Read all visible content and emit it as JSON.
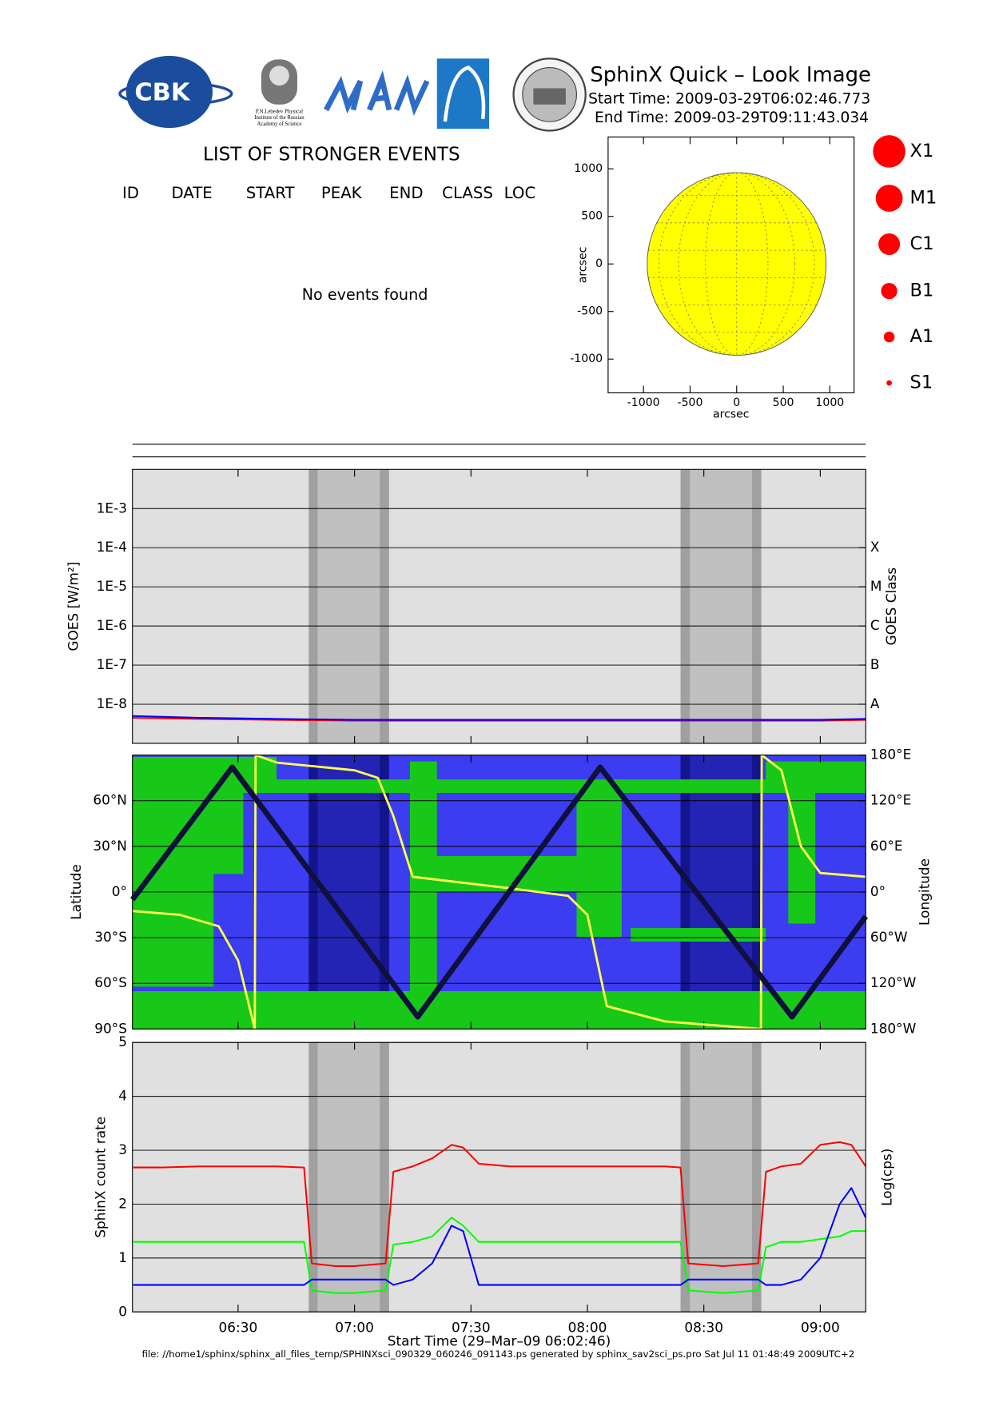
{
  "header": {
    "title": "SphinX Quick – Look Image",
    "start_time": "Start Time: 2009-03-29T06:02:46.773",
    "end_time": "End Time: 2009-03-29T09:11:43.034"
  },
  "logos": {
    "cbk": "CBK",
    "lebedev": [
      "P.N.Lebedev Physical",
      "Institute of the Russian",
      "Academy of Science"
    ]
  },
  "events": {
    "title": "LIST OF STRONGER EVENTS",
    "columns": [
      "ID",
      "DATE",
      "START",
      "PEAK",
      "END",
      "CLASS",
      "LOC"
    ],
    "message": "No events found"
  },
  "flare_classes": [
    "X1",
    "M1",
    "C1",
    "B1",
    "A1",
    "S1"
  ],
  "footer": "file: //home1/sphinx/sphinx_all_files_temp/SPHINXsci_090329_060246_091143.ps generated by sphinx_sav2sci_ps.pro Sat Jul 11 01:48:49 2009UTC+2",
  "chart_data": [
    {
      "type": "disk",
      "xlabel": "arcsec",
      "ylabel": "arcsec",
      "xlim": [
        -1380,
        1260
      ],
      "ylim": [
        -1355,
        1335
      ],
      "xticks": [
        -1000,
        -500,
        0,
        500,
        1000
      ],
      "yticks": [
        -1000,
        -500,
        0,
        500,
        1000
      ],
      "radius": 960,
      "color": "#ffff00",
      "background": "#ffffff"
    },
    {
      "type": "line",
      "ylabel": "GOES [W/m²]",
      "y2label": "GOES Class",
      "log_y": true,
      "grid": true,
      "background": "#e0e0e0",
      "penumbra_color": "#a0a0a0",
      "umbra_color": "#c0c0c0",
      "xlim": [
        362.78,
        551.72
      ],
      "ylim": [
        1e-09,
        0.01
      ],
      "xticks": [
        390,
        420,
        450,
        480,
        510,
        540
      ],
      "yticks": [
        {
          "value": 0.001,
          "label": "1E-3"
        },
        {
          "value": 0.0001,
          "label": "1E-4"
        },
        {
          "value": 1e-05,
          "label": "1E-5"
        },
        {
          "value": 1e-06,
          "label": "1E-6"
        },
        {
          "value": 1e-07,
          "label": "1E-7"
        },
        {
          "value": 1e-08,
          "label": "1E-8"
        }
      ],
      "y2ticks": [
        {
          "value": 0.0001,
          "label": "X"
        },
        {
          "value": 1e-05,
          "label": "M"
        },
        {
          "value": 1e-06,
          "label": "C"
        },
        {
          "value": 1e-07,
          "label": "B"
        },
        {
          "value": 1e-08,
          "label": "A"
        }
      ],
      "shading": [
        {
          "penumbra": [
            408.2,
            428.9
          ],
          "umbra": [
            410.5,
            426.5
          ]
        },
        {
          "penumbra": [
            504.0,
            524.8
          ],
          "umbra": [
            506.4,
            522.4
          ]
        }
      ],
      "x": [
        362.78,
        380,
        400,
        420,
        450,
        480,
        510,
        540,
        551.72
      ],
      "series": [
        {
          "color": "#ff0000",
          "values": [
            4.5e-09,
            4.2e-09,
            4e-09,
            3.8e-09,
            3.8e-09,
            3.8e-09,
            3.8e-09,
            3.8e-09,
            4e-09
          ]
        },
        {
          "color": "#0000ff",
          "values": [
            5e-09,
            4.5e-09,
            4.2e-09,
            4e-09,
            4e-09,
            4e-09,
            4e-09,
            4e-09,
            4.2e-09
          ]
        }
      ]
    },
    {
      "type": "track",
      "ylabel": "Latitude",
      "y2label": "Longitude",
      "grid": true,
      "background": "#3c3cf0",
      "penumbra_color": "#14148c",
      "umbra_color": "#2424b4",
      "xlim": [
        362.78,
        551.72
      ],
      "ylim": [
        -90,
        90
      ],
      "y2lim": [
        -180,
        180
      ],
      "xticks": [
        390,
        420,
        450,
        480,
        510,
        540
      ],
      "yticks": [
        {
          "value": 60,
          "label": "60°N"
        },
        {
          "value": 30,
          "label": "30°N"
        },
        {
          "value": 0,
          "label": "0°"
        },
        {
          "value": -30,
          "label": "30°S"
        },
        {
          "value": -60,
          "label": "60°S"
        },
        {
          "value": -90,
          "label": "90°S"
        }
      ],
      "y2ticks": [
        {
          "value": 180,
          "label": "180°E"
        },
        {
          "value": 120,
          "label": "120°E"
        },
        {
          "value": 60,
          "label": "60°E"
        },
        {
          "value": 0,
          "label": "0°"
        },
        {
          "value": -60,
          "label": "60°W"
        },
        {
          "value": -120,
          "label": "120°W"
        },
        {
          "value": -180,
          "label": "180°W"
        }
      ],
      "shading": [
        {
          "penumbra": [
            408.2,
            428.9
          ],
          "umbra": [
            410.5,
            426.5
          ]
        },
        {
          "penumbra": [
            504.0,
            524.8
          ],
          "umbra": [
            506.4,
            522.4
          ]
        }
      ],
      "series": [
        {
          "color": "#ffff50",
          "axis": "y2",
          "x": [
            362.78,
            375,
            385,
            390,
            394.3,
            394.5,
            400,
            420,
            426,
            430,
            435,
            460,
            475,
            480,
            485,
            500,
            524.7,
            524.9,
            530,
            535,
            540,
            551.72
          ],
          "values": [
            -25,
            -30,
            -45,
            -90,
            -180,
            180,
            170,
            160,
            150,
            100,
            20,
            5,
            -5,
            -30,
            -150,
            -170,
            -180,
            180,
            160,
            60,
            25,
            20
          ]
        },
        {
          "color": "#10103c",
          "x": [
            362.78,
            388.5,
            436.3,
            483.3,
            532.7,
            551.72
          ],
          "values": [
            -5,
            82,
            -82,
            82,
            -82,
            -16
          ]
        }
      ]
    },
    {
      "type": "line",
      "ylabel": "SphinX count rate",
      "y2label": "Log(cps)",
      "xlabel": "Start Time (29–Mar–09 06:02:46)",
      "grid": true,
      "background": "#e0e0e0",
      "penumbra_color": "#a0a0a0",
      "umbra_color": "#c0c0c0",
      "xlim": [
        362.78,
        551.72
      ],
      "ylim": [
        0,
        5
      ],
      "yticks": [
        0,
        1,
        2,
        3,
        4,
        5
      ],
      "xticks": [
        {
          "value": 390,
          "label": "06:30"
        },
        {
          "value": 420,
          "label": "07:00"
        },
        {
          "value": 450,
          "label": "07:30"
        },
        {
          "value": 480,
          "label": "08:00"
        },
        {
          "value": 510,
          "label": "08:30"
        },
        {
          "value": 540,
          "label": "09:00"
        }
      ],
      "shading": [
        {
          "penumbra": [
            408.2,
            428.9
          ],
          "umbra": [
            410.5,
            426.5
          ]
        },
        {
          "penumbra": [
            504.0,
            524.8
          ],
          "umbra": [
            506.4,
            522.4
          ]
        }
      ],
      "x": [
        363,
        370,
        380,
        390,
        400,
        407,
        409,
        415,
        420,
        428,
        430,
        435,
        440,
        445,
        448,
        452,
        460,
        470,
        480,
        490,
        500,
        504,
        506,
        515,
        524,
        526,
        530,
        535,
        540,
        545,
        548,
        551.7
      ],
      "series": [
        {
          "color": "#ff0000",
          "values": [
            2.68,
            2.68,
            2.7,
            2.7,
            2.7,
            2.68,
            0.9,
            0.85,
            0.85,
            0.9,
            2.6,
            2.7,
            2.85,
            3.1,
            3.05,
            2.75,
            2.7,
            2.7,
            2.7,
            2.7,
            2.7,
            2.68,
            0.9,
            0.85,
            0.9,
            2.6,
            2.7,
            2.75,
            3.1,
            3.15,
            3.1,
            2.7
          ]
        },
        {
          "color": "#00ff00",
          "values": [
            1.3,
            1.3,
            1.3,
            1.3,
            1.3,
            1.3,
            0.4,
            0.35,
            0.35,
            0.4,
            1.25,
            1.3,
            1.4,
            1.75,
            1.6,
            1.3,
            1.3,
            1.3,
            1.3,
            1.3,
            1.3,
            1.3,
            0.4,
            0.35,
            0.4,
            1.2,
            1.3,
            1.3,
            1.35,
            1.4,
            1.5,
            1.5
          ]
        },
        {
          "color": "#0000ff",
          "values": [
            0.5,
            0.5,
            0.5,
            0.5,
            0.5,
            0.5,
            0.6,
            0.6,
            0.6,
            0.6,
            0.5,
            0.6,
            0.9,
            1.6,
            1.5,
            0.5,
            0.5,
            0.5,
            0.5,
            0.5,
            0.5,
            0.5,
            0.6,
            0.6,
            0.6,
            0.5,
            0.5,
            0.6,
            1.0,
            2.0,
            2.3,
            1.75
          ]
        }
      ]
    }
  ]
}
